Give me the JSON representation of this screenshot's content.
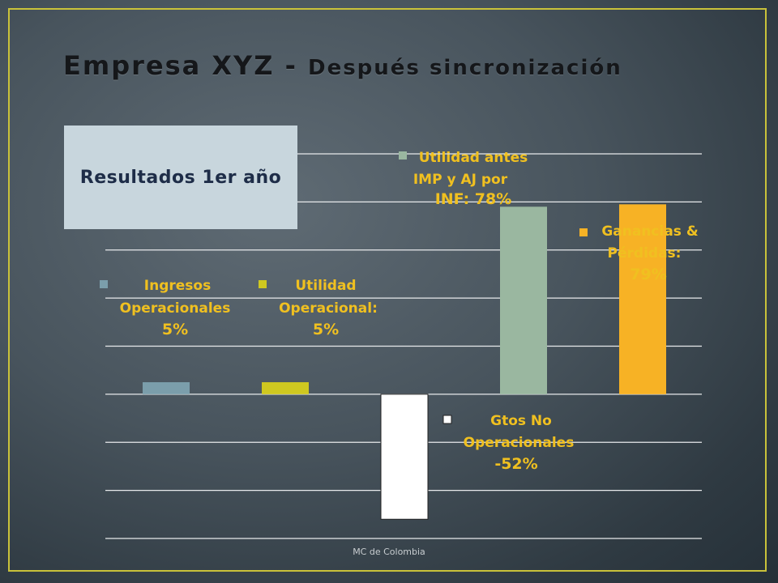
{
  "slide": {
    "title_main": "Empresa XYZ - ",
    "title_sub": "Después sincronización",
    "results_box": "Resultados 1er año",
    "footer": "MC de Colombia"
  },
  "colors": {
    "frame": "#c9c23a",
    "label": "#f0c020",
    "results_bg": "#c8d6dd",
    "results_text": "#1e2d48"
  },
  "chart_data": {
    "type": "bar",
    "ylim": [
      -60,
      100
    ],
    "grid": true,
    "categories": [
      "Ingresos Operacionales",
      "Utilidad Operacional",
      "Gtos No Operacionales",
      "Utilidad antes IMP y AJ por INF",
      "Ganancias & Pérdidas"
    ],
    "values": [
      5,
      5,
      -52,
      78,
      79
    ],
    "colors": [
      "#7b9eab",
      "#cfc820",
      "#ffffff",
      "#9ab7a0",
      "#f7b225"
    ],
    "labels": [
      {
        "lines": [
          "Ingresos",
          "Operacionales",
          "5%"
        ]
      },
      {
        "lines": [
          "Utilidad",
          "Operacional:",
          "5%"
        ]
      },
      {
        "lines": [
          "Gtos No",
          "Operacionales",
          "-52%"
        ]
      },
      {
        "lines": [
          "Utilidad antes",
          "IMP y AJ por",
          "INF: 78%"
        ]
      },
      {
        "lines": [
          "Ganancias &",
          "Pérdidas:",
          "79%"
        ]
      }
    ]
  }
}
